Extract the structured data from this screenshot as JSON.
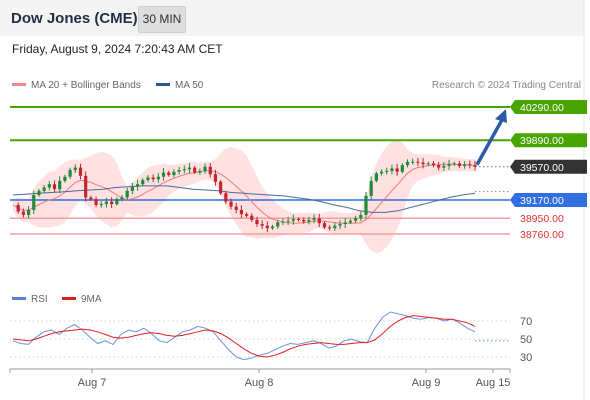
{
  "header": {
    "title": "Dow Jones (CME)",
    "timeframe": "30 MIN"
  },
  "datetime": "Friday, August 9, 2024 7:20:43 AM CET",
  "legend": {
    "bb_label": "MA 20 + Bollinger Bands",
    "ma50_label": "MA 50",
    "rsi_label": "RSI",
    "ma9_label": "9MA"
  },
  "credit": "Research © 2024 Trading Central",
  "colors": {
    "resistance": "#4aa400",
    "current": "#333333",
    "pivot": "#2f6fe0",
    "support_line": "#f2a0a0",
    "support_text": "#e03030",
    "bollinger": "#ffc9c9",
    "ma20": "#f07a7a",
    "ma50": "#4a6a9a",
    "arrow": "#2a5ca8",
    "rsi": "#6b8fe0",
    "rsi_ma9": "#e02020"
  },
  "chart_data": [
    {
      "type": "candlestick",
      "price_levels": [
        {
          "label": "40290.00",
          "value": 40290,
          "kind": "resistance"
        },
        {
          "label": "39890.00",
          "value": 39890,
          "kind": "resistance"
        },
        {
          "label": "39570.00",
          "value": 39570,
          "kind": "current"
        },
        {
          "label": "39170.00",
          "value": 39170,
          "kind": "pivot"
        },
        {
          "label": "38950.00",
          "value": 38950,
          "kind": "support"
        },
        {
          "label": "38760.00",
          "value": 38760,
          "kind": "support"
        }
      ],
      "x_labels": [
        "Aug 7",
        "Aug 8",
        "Aug 9",
        "Aug 15"
      ],
      "close_series": [
        39110,
        39030,
        38990,
        39050,
        39230,
        39280,
        39320,
        39360,
        39300,
        39400,
        39450,
        39530,
        39560,
        39460,
        39200,
        39180,
        39110,
        39120,
        39150,
        39120,
        39180,
        39200,
        39280,
        39330,
        39360,
        39410,
        39440,
        39420,
        39450,
        39500,
        39470,
        39510,
        39530,
        39540,
        39560,
        39500,
        39520,
        39570,
        39480,
        39390,
        39250,
        39150,
        39090,
        39050,
        39000,
        38980,
        38930,
        38880,
        38860,
        38830,
        38850,
        38900,
        38910,
        38920,
        38940,
        38930,
        38910,
        38930,
        38950,
        38890,
        38840,
        38830,
        38860,
        38880,
        38900,
        38920,
        38950,
        38990,
        39220,
        39400,
        39490,
        39510,
        39520,
        39550,
        39510,
        39590,
        39630,
        39630,
        39620,
        39600,
        39610,
        39590,
        39560,
        39580,
        39600,
        39610,
        39580,
        39600,
        39590,
        39570
      ],
      "ma50": [
        39230,
        39240,
        39250,
        39260,
        39270,
        39280,
        39290,
        39300,
        39320,
        39330,
        39340,
        39340,
        39340,
        39320,
        39300,
        39290,
        39280,
        39260,
        39250,
        39240,
        39230,
        39220,
        39200,
        39180,
        39150,
        39110,
        39080,
        39040,
        39020,
        39020,
        39040,
        39080,
        39120,
        39160,
        39200,
        39230,
        39250
      ],
      "arrow_target": 40290,
      "bars_observed": 90
    },
    {
      "type": "line",
      "panel": "RSI",
      "y_ticks": [
        70,
        50,
        30
      ],
      "rsi": [
        48,
        45,
        44,
        52,
        58,
        60,
        55,
        62,
        66,
        60,
        52,
        45,
        48,
        44,
        55,
        60,
        58,
        62,
        56,
        48,
        46,
        52,
        58,
        60,
        64,
        62,
        58,
        48,
        38,
        30,
        27,
        29,
        32,
        34,
        38,
        42,
        45,
        44,
        46,
        48,
        45,
        40,
        42,
        48,
        50,
        47,
        46,
        62,
        74,
        80,
        78,
        76,
        73,
        72,
        74,
        73,
        70,
        72,
        68,
        62,
        58
      ],
      "ma9": [
        50,
        49,
        48,
        50,
        53,
        56,
        58,
        59,
        60,
        61,
        60,
        58,
        55,
        52,
        51,
        52,
        54,
        56,
        57,
        56,
        54,
        53,
        54,
        56,
        58,
        60,
        59,
        56,
        51,
        45,
        39,
        34,
        31,
        30,
        32,
        35,
        39,
        42,
        44,
        45,
        46,
        45,
        44,
        44,
        45,
        46,
        46,
        49,
        56,
        64,
        70,
        74,
        76,
        75,
        74,
        73,
        72,
        72,
        70,
        68,
        64
      ]
    }
  ]
}
